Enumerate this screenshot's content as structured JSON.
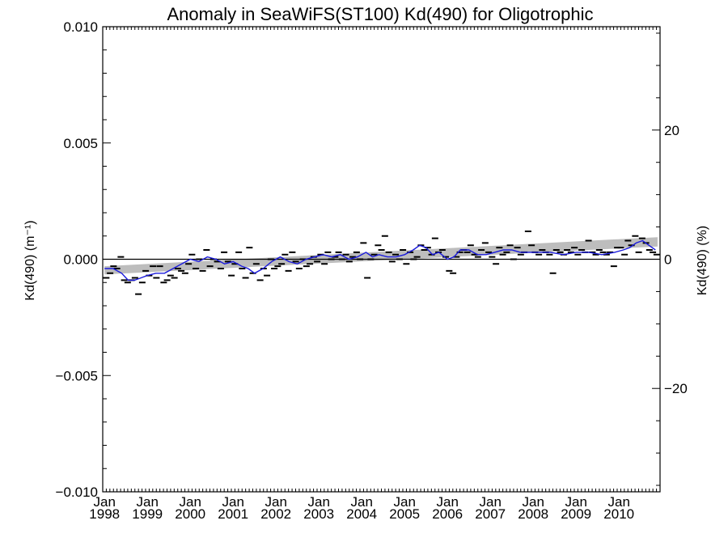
{
  "chart_data": {
    "type": "scatter",
    "title": "Anomaly in SeaWiFS(ST100) Kd(490) for Oligotrophic",
    "ylabel": "Kd(490) (m⁻¹)",
    "ylabel_right": "Kd(490) (%)",
    "ylim": [
      -0.01,
      0.01
    ],
    "yticks": [
      -0.01,
      -0.005,
      0.0,
      0.005,
      0.01
    ],
    "ytick_labels": [
      "−0.010",
      "−0.005",
      "0.000",
      "0.005",
      "0.010"
    ],
    "right_ylim": [
      -36,
      36
    ],
    "right_ticks": [
      -20,
      0,
      20
    ],
    "right_tick_labels": [
      "−20",
      "0",
      "20"
    ],
    "xlim": [
      1997.958,
      2010.958
    ],
    "xticks": [
      1998,
      1999,
      2000,
      2001,
      2002,
      2003,
      2004,
      2005,
      2006,
      2007,
      2008,
      2009,
      2010
    ],
    "xtick_labels": [
      [
        "Jan",
        "1998"
      ],
      [
        "Jan",
        "1999"
      ],
      [
        "Jan",
        "2000"
      ],
      [
        "Jan",
        "2001"
      ],
      [
        "Jan",
        "2002"
      ],
      [
        "Jan",
        "2003"
      ],
      [
        "Jan",
        "2004"
      ],
      [
        "Jan",
        "2005"
      ],
      [
        "Jan",
        "2006"
      ],
      [
        "Jan",
        "2007"
      ],
      [
        "Jan",
        "2008"
      ],
      [
        "Jan",
        "2009"
      ],
      [
        "Jan",
        "2010"
      ]
    ],
    "zero_line": 0,
    "trend_band": {
      "x": [
        1998.0,
        2010.9
      ],
      "lower": [
        -0.00065,
        0.00055
      ],
      "upper": [
        -0.0003,
        0.00095
      ]
    },
    "monthly_anomaly_points": {
      "style": "dash",
      "color": "#000000",
      "x": [
        1998.04,
        1998.13,
        1998.21,
        1998.29,
        1998.38,
        1998.46,
        1998.54,
        1998.63,
        1998.71,
        1998.79,
        1998.88,
        1998.96,
        1999.04,
        1999.13,
        1999.21,
        1999.29,
        1999.38,
        1999.46,
        1999.54,
        1999.63,
        1999.71,
        1999.79,
        1999.88,
        1999.96,
        2000.04,
        2000.13,
        2000.21,
        2000.29,
        2000.38,
        2000.46,
        2000.54,
        2000.63,
        2000.71,
        2000.79,
        2000.88,
        2000.96,
        2001.04,
        2001.13,
        2001.21,
        2001.29,
        2001.38,
        2001.46,
        2001.54,
        2001.63,
        2001.71,
        2001.79,
        2001.88,
        2001.96,
        2002.04,
        2002.13,
        2002.21,
        2002.29,
        2002.38,
        2002.46,
        2002.54,
        2002.63,
        2002.71,
        2002.79,
        2002.88,
        2002.96,
        2003.04,
        2003.13,
        2003.21,
        2003.29,
        2003.38,
        2003.46,
        2003.54,
        2003.63,
        2003.71,
        2003.79,
        2003.88,
        2003.96,
        2004.04,
        2004.13,
        2004.21,
        2004.29,
        2004.38,
        2004.46,
        2004.54,
        2004.63,
        2004.71,
        2004.79,
        2004.88,
        2004.96,
        2005.04,
        2005.13,
        2005.21,
        2005.29,
        2005.38,
        2005.46,
        2005.54,
        2005.63,
        2005.71,
        2005.79,
        2005.88,
        2005.96,
        2006.04,
        2006.13,
        2006.21,
        2006.29,
        2006.38,
        2006.46,
        2006.54,
        2006.63,
        2006.71,
        2006.79,
        2006.88,
        2006.96,
        2007.04,
        2007.13,
        2007.21,
        2007.29,
        2007.38,
        2007.46,
        2007.54,
        2007.63,
        2007.71,
        2007.79,
        2007.88,
        2007.96,
        2008.04,
        2008.13,
        2008.21,
        2008.29,
        2008.38,
        2008.46,
        2008.54,
        2008.63,
        2008.71,
        2008.79,
        2008.88,
        2008.96,
        2009.04,
        2009.13,
        2009.21,
        2009.29,
        2009.38,
        2009.46,
        2009.54,
        2009.63,
        2009.71,
        2009.79,
        2009.88,
        2009.96,
        2010.04,
        2010.13,
        2010.21,
        2010.29,
        2010.38,
        2010.46,
        2010.54,
        2010.63,
        2010.71,
        2010.79,
        2010.88
      ],
      "y": [
        -0.0008,
        -0.0006,
        -0.0003,
        -0.0004,
        0.0001,
        -0.0009,
        -0.001,
        -0.0009,
        -0.0008,
        -0.0015,
        -0.001,
        -0.0005,
        -0.0007,
        -0.0003,
        -0.0008,
        -0.0003,
        -0.001,
        -0.0009,
        -0.0007,
        -0.0008,
        -0.0004,
        -0.0005,
        -0.0006,
        -0.0002,
        0.0002,
        -0.0004,
        0.0,
        -0.0005,
        0.0004,
        -0.0003,
        0.0,
        -0.0001,
        -0.0004,
        0.0003,
        -0.0001,
        -0.0007,
        -0.0002,
        0.0003,
        -0.0004,
        -0.0008,
        0.0005,
        -0.0006,
        -0.0002,
        -0.0009,
        -0.0004,
        -0.0007,
        0.0,
        -0.0004,
        -0.0003,
        -0.0002,
        0.0002,
        -0.0005,
        0.0003,
        -0.0001,
        -0.0004,
        0.0,
        -0.0003,
        -0.0002,
        0.0001,
        -0.0001,
        0.0002,
        -0.0002,
        0.0003,
        0.0,
        0.0001,
        0.0003,
        0.0,
        0.0002,
        -0.0001,
        0.0001,
        0.0003,
        0.0,
        0.0007,
        -0.0008,
        0.0,
        0.0002,
        0.0006,
        0.0004,
        0.001,
        0.0003,
        -0.0001,
        0.0002,
        0.0,
        0.0004,
        -0.0002,
        0.0003,
        0.0,
        0.0001,
        0.0006,
        0.0004,
        0.0005,
        0.0002,
        0.0009,
        0.0003,
        0.0004,
        0.0001,
        -0.0005,
        -0.0006,
        0.0001,
        0.0003,
        0.0004,
        0.0003,
        0.0006,
        0.0002,
        0.0001,
        0.0004,
        0.0007,
        0.0003,
        0.0001,
        -0.0002,
        0.0005,
        0.0002,
        0.0003,
        0.0006,
        0.0,
        0.0005,
        0.0002,
        0.0003,
        0.0012,
        0.0006,
        0.0003,
        0.0002,
        0.0004,
        0.0003,
        0.0002,
        -0.0006,
        0.0004,
        0.0003,
        0.0002,
        0.0004,
        0.0003,
        0.0005,
        0.0002,
        0.0004,
        0.0003,
        0.0008,
        0.0003,
        0.0002,
        0.0004,
        0.0003,
        0.0002,
        0.0003,
        -0.0003,
        0.0005,
        0.0005,
        0.0002,
        0.0008,
        0.0006,
        0.001,
        0.0003,
        0.0009,
        0.0007,
        0.0004,
        0.0003,
        0.0002
      ]
    },
    "running_mean": {
      "color": "#1a1adc",
      "x": [
        1998.0,
        1998.2,
        1998.4,
        1998.55,
        1998.7,
        1998.85,
        1999.0,
        1999.2,
        1999.4,
        1999.6,
        1999.8,
        2000.0,
        2000.2,
        2000.4,
        2000.6,
        2000.8,
        2001.0,
        2001.2,
        2001.35,
        2001.5,
        2001.7,
        2001.9,
        2002.1,
        2002.3,
        2002.5,
        2002.7,
        2002.9,
        2003.1,
        2003.3,
        2003.5,
        2003.7,
        2003.9,
        2004.1,
        2004.25,
        2004.4,
        2004.6,
        2004.8,
        2005.0,
        2005.2,
        2005.35,
        2005.5,
        2005.65,
        2005.8,
        2006.0,
        2006.15,
        2006.3,
        2006.5,
        2006.7,
        2006.9,
        2007.1,
        2007.3,
        2007.5,
        2007.7,
        2007.9,
        2008.1,
        2008.4,
        2008.7,
        2009.0,
        2009.3,
        2009.6,
        2009.9,
        2010.1,
        2010.25,
        2010.4,
        2010.55,
        2010.7,
        2010.85
      ],
      "y": [
        -0.0004,
        -0.0004,
        -0.0006,
        -0.0009,
        -0.0009,
        -0.0008,
        -0.0007,
        -0.0006,
        -0.0006,
        -0.0004,
        -0.0002,
        0.0,
        -0.0001,
        0.0001,
        0.0,
        -0.0002,
        -0.0001,
        -0.0003,
        -0.0004,
        -0.0006,
        -0.0004,
        -0.0001,
        0.0001,
        -0.0001,
        -0.0002,
        0.0,
        0.0001,
        0.0002,
        0.0001,
        0.0002,
        0.0,
        0.0001,
        0.0003,
        0.0001,
        0.0002,
        0.0001,
        0.0001,
        0.0002,
        0.0004,
        0.0006,
        0.0005,
        0.0002,
        0.0003,
        0.0,
        0.0001,
        0.0004,
        0.0004,
        0.0002,
        0.0002,
        0.0003,
        0.0004,
        0.0004,
        0.0003,
        0.0003,
        0.0003,
        0.0003,
        0.0002,
        0.0003,
        0.0003,
        0.0002,
        0.0003,
        0.0004,
        0.0005,
        0.0007,
        0.0008,
        0.0006,
        0.0004
      ]
    },
    "grid": false,
    "legend": "none"
  }
}
